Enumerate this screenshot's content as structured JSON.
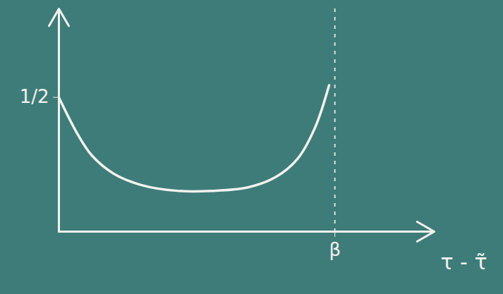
{
  "chart_data": {
    "type": "line",
    "x_label": "τ - τ̃",
    "x": [
      0,
      0.069,
      0.12,
      0.197,
      0.3,
      0.428,
      0.556,
      0.685,
      0.787,
      0.864,
      0.928,
      0.979
    ],
    "values": [
      0.5,
      0.361,
      0.283,
      0.217,
      0.173,
      0.152,
      0.152,
      0.165,
      0.204,
      0.27,
      0.387,
      0.545
    ],
    "color": "#f2f2ee",
    "xlim": [
      0,
      1.36
    ],
    "ylim": [
      0,
      0.83
    ],
    "xticks": [
      {
        "value": 1,
        "label": "β"
      }
    ],
    "yticks": [
      {
        "value": 0.5,
        "label": "1/2"
      }
    ],
    "grid": false
  }
}
